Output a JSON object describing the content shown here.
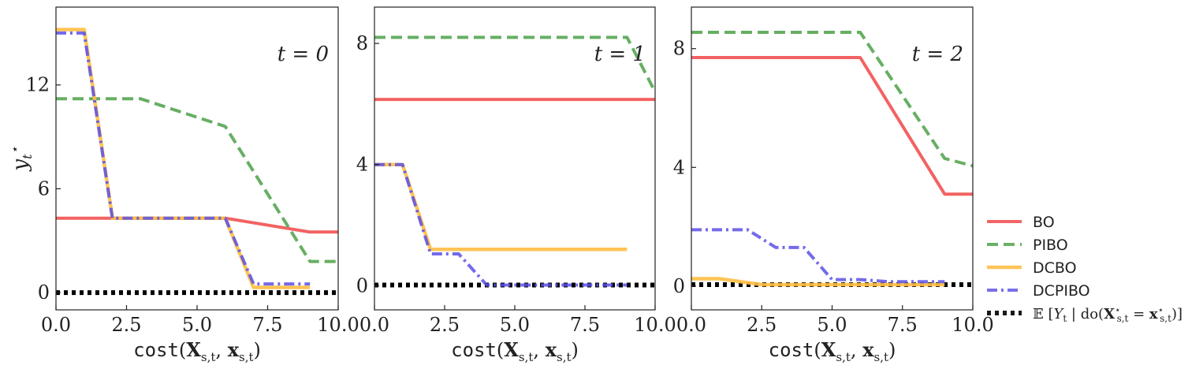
{
  "chart_data": [
    {
      "type": "line",
      "panel_title": "t = 0",
      "xlabel": "cost(X_{s,t}, x_{s,t})",
      "ylabel": "y_t*",
      "xlim": [
        0,
        10
      ],
      "ylim": [
        -1,
        16.5
      ],
      "xticks": [
        0,
        2.5,
        5,
        7.5,
        10
      ],
      "xtick_labels": [
        "0.0",
        "2.5",
        "5.0",
        "7.5",
        "10.0"
      ],
      "yticks": [
        0,
        6,
        12
      ],
      "ytick_labels": [
        "0",
        "6",
        "12"
      ],
      "series": [
        {
          "name": "BO",
          "x": [
            0,
            6,
            9,
            10
          ],
          "y": [
            4.3,
            4.3,
            3.5,
            3.5
          ]
        },
        {
          "name": "PIBO",
          "x": [
            0,
            3,
            6,
            9,
            10
          ],
          "y": [
            11.2,
            11.2,
            9.6,
            1.8,
            1.8
          ]
        },
        {
          "name": "DCBO",
          "x": [
            0,
            1,
            2,
            6,
            7,
            9
          ],
          "y": [
            15.2,
            15.2,
            4.3,
            4.3,
            0.3,
            0.3
          ]
        },
        {
          "name": "DCPIBO",
          "x": [
            0,
            1,
            2,
            6,
            7,
            9
          ],
          "y": [
            15.0,
            15.0,
            4.3,
            4.3,
            0.5,
            0.5
          ]
        },
        {
          "name": "E[Y_t | do(X*_{s,t} = x*_{s,t})]",
          "x": [
            0,
            10
          ],
          "y": [
            0,
            0
          ]
        }
      ]
    },
    {
      "type": "line",
      "panel_title": "t = 1",
      "xlabel": "cost(X_{s,t}, x_{s,t})",
      "xlim": [
        0,
        10
      ],
      "ylim": [
        -0.8,
        9.2
      ],
      "xticks": [
        0,
        2.5,
        5,
        7.5,
        10
      ],
      "xtick_labels": [
        "0.0",
        "2.5",
        "5.0",
        "7.5",
        "10.0"
      ],
      "yticks": [
        0,
        4,
        8
      ],
      "ytick_labels": [
        "0",
        "4",
        "8"
      ],
      "series": [
        {
          "name": "BO",
          "x": [
            0,
            10
          ],
          "y": [
            6.15,
            6.15
          ]
        },
        {
          "name": "PIBO",
          "x": [
            0,
            9,
            10
          ],
          "y": [
            8.2,
            8.2,
            6.4
          ]
        },
        {
          "name": "DCBO",
          "x": [
            0,
            1,
            2,
            9
          ],
          "y": [
            4.0,
            4.0,
            1.2,
            1.2
          ]
        },
        {
          "name": "DCPIBO",
          "x": [
            0,
            1,
            2,
            3,
            4,
            9
          ],
          "y": [
            4.0,
            4.0,
            1.05,
            1.05,
            0.02,
            0.02
          ]
        },
        {
          "name": "E[Y_t | do(X*_{s,t} = x*_{s,t})]",
          "x": [
            0,
            10
          ],
          "y": [
            0.02,
            0.02
          ]
        }
      ]
    },
    {
      "type": "line",
      "panel_title": "t = 2",
      "xlabel": "cost(X_{s,t}, x_{s,t})",
      "xlim": [
        0,
        10
      ],
      "ylim": [
        -0.8,
        9.4
      ],
      "xticks": [
        0,
        2.5,
        5,
        7.5,
        10
      ],
      "xtick_labels": [
        "0.0",
        "2.5",
        "5.0",
        "7.5",
        "10.0"
      ],
      "yticks": [
        0,
        4,
        8
      ],
      "ytick_labels": [
        "0",
        "4",
        "8"
      ],
      "series": [
        {
          "name": "BO",
          "x": [
            0,
            6,
            9,
            10
          ],
          "y": [
            7.7,
            7.7,
            3.1,
            3.1
          ]
        },
        {
          "name": "PIBO",
          "x": [
            0,
            6,
            9,
            10
          ],
          "y": [
            8.55,
            8.55,
            4.3,
            4.05
          ]
        },
        {
          "name": "DCBO",
          "x": [
            0,
            1,
            2.5,
            9
          ],
          "y": [
            0.25,
            0.25,
            0.05,
            0.05
          ]
        },
        {
          "name": "DCPIBO",
          "x": [
            0,
            2,
            3,
            4,
            5,
            6,
            7,
            9
          ],
          "y": [
            1.9,
            1.9,
            1.3,
            1.3,
            0.22,
            0.22,
            0.15,
            0.15
          ]
        },
        {
          "name": "E[Y_t | do(X*_{s,t} = x*_{s,t})]",
          "x": [
            0,
            10
          ],
          "y": [
            0.05,
            0.05
          ]
        }
      ]
    }
  ],
  "legend": {
    "placement": "right",
    "entries": [
      {
        "label": "BO",
        "color": "#f25555",
        "style": "solid"
      },
      {
        "label": "PIBO",
        "color": "#5aa856",
        "style": "dashed"
      },
      {
        "label": "DCBO",
        "color": "#ffbf47",
        "style": "solid"
      },
      {
        "label": "DCPIBO",
        "color": "#6a5fe8",
        "style": "dashdot"
      },
      {
        "label": "𝔼 [Y_t | do(X*_{s,t} = x*_{s,t})]",
        "color": "#000000",
        "style": "dotted"
      }
    ]
  },
  "styles": {
    "BO": {
      "color": "#f25555",
      "dash": "",
      "width": 4
    },
    "PIBO": {
      "color": "#5aa856",
      "dash": "14 7",
      "width": 4
    },
    "DCBO": {
      "color": "#ffbf47",
      "dash": "",
      "width": 4.5
    },
    "DCPIBO": {
      "color": "#5b50e8",
      "dash": "13 5 3 5",
      "width": 4
    },
    "E[Y_t | do(X*_{s,t} = x*_{s,t})]": {
      "color": "#000000",
      "dash": "5 5",
      "width": 6
    }
  }
}
